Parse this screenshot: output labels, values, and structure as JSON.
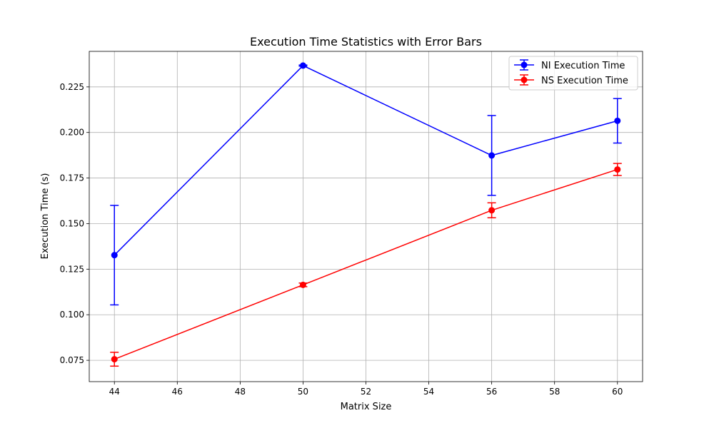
{
  "chart_data": {
    "type": "line",
    "title": "Execution Time Statistics with Error Bars",
    "xlabel": "Matrix Size",
    "ylabel": "Execution Time (s)",
    "x": [
      44,
      50,
      56,
      60
    ],
    "xlim": [
      43.2,
      60.8
    ],
    "ylim": [
      0.0633,
      0.2445
    ],
    "xticks": [
      44,
      46,
      48,
      50,
      52,
      54,
      56,
      58,
      60
    ],
    "yticks": [
      0.075,
      0.1,
      0.125,
      0.15,
      0.175,
      0.2,
      0.225
    ],
    "xtick_labels": [
      "44",
      "46",
      "48",
      "50",
      "52",
      "54",
      "56",
      "58",
      "60"
    ],
    "ytick_labels": [
      "0.075",
      "0.100",
      "0.125",
      "0.150",
      "0.175",
      "0.200",
      "0.225"
    ],
    "grid": true,
    "legend_position": "top-right",
    "series": [
      {
        "name": "NI Execution Time",
        "color": "#0000ff",
        "values": [
          0.1327,
          0.2367,
          0.1874,
          0.2064
        ],
        "errors": [
          0.0273,
          0.0003,
          0.0219,
          0.0122
        ]
      },
      {
        "name": "NS Execution Time",
        "color": "#ff0000",
        "values": [
          0.0756,
          0.1164,
          0.1573,
          0.1797
        ],
        "errors": [
          0.0038,
          0.001,
          0.0041,
          0.0033
        ]
      }
    ]
  }
}
